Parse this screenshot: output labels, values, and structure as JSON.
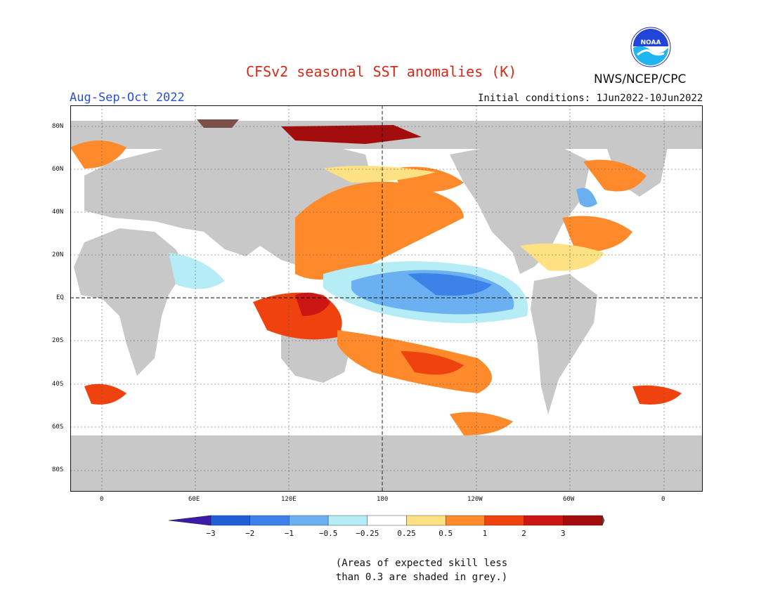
{
  "title": "CFSv2 seasonal SST anomalies (K)",
  "season": "Aug-Sep-Oct 2022",
  "initial_conditions": "Initial conditions: 1Jun2022-10Jun2022",
  "agency": "NWS/NCEP/CPC",
  "logo_text": "NOAA",
  "lat_labels": [
    "80N",
    "60N",
    "40N",
    "20N",
    "EQ",
    "20S",
    "40S",
    "60S",
    "80S"
  ],
  "lon_labels": [
    "0",
    "60E",
    "120E",
    "180",
    "120W",
    "60W",
    "0"
  ],
  "colorbar": {
    "ticks": [
      "−3",
      "−2",
      "−1",
      "−0.5",
      "−0.25",
      "0.25",
      "0.5",
      "1",
      "2",
      "3"
    ],
    "colors": [
      "#3d1aa8",
      "#1f5fd6",
      "#3c82e8",
      "#6bb1f2",
      "#b6ecf6",
      "#ffffff",
      "#fde183",
      "#ff8a2b",
      "#f0420e",
      "#cc1614",
      "#a20c0c",
      "#7a5048"
    ]
  },
  "land_color": "#c8c8c8",
  "note_line1": "(Areas of expected skill less",
  "note_line2": "than 0.3 are shaded in grey.)"
}
